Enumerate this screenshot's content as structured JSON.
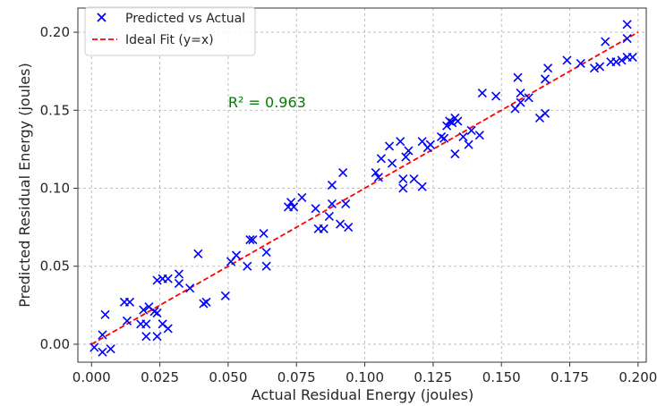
{
  "chart_data": {
    "type": "scatter",
    "xlabel": "Actual Residual Energy (joules)",
    "ylabel": "Predicted Residual Energy (joules)",
    "xlim": [
      -0.005,
      0.203
    ],
    "ylim": [
      -0.0115,
      0.2155
    ],
    "x_ticks": [
      0.0,
      0.025,
      0.05,
      0.075,
      0.1,
      0.125,
      0.15,
      0.175,
      0.2
    ],
    "x_tick_labels": [
      "0.000",
      "0.025",
      "0.050",
      "0.075",
      "0.100",
      "0.125",
      "0.150",
      "0.175",
      "0.200"
    ],
    "y_ticks": [
      0.0,
      0.05,
      0.1,
      0.15,
      0.2
    ],
    "y_tick_labels": [
      "0.00",
      "0.05",
      "0.10",
      "0.15",
      "0.20"
    ],
    "grid": true,
    "legend_position": "top-left",
    "annotation": {
      "text": "R² = 0.963",
      "x": 0.05,
      "y": 0.152,
      "color": "#008000"
    },
    "series": [
      {
        "name": "Predicted vs Actual",
        "marker": "x",
        "color": "#0000ff",
        "points": [
          [
            0.001,
            -0.002
          ],
          [
            0.004,
            -0.005
          ],
          [
            0.007,
            -0.003
          ],
          [
            0.004,
            0.006
          ],
          [
            0.005,
            0.019
          ],
          [
            0.012,
            0.027
          ],
          [
            0.014,
            0.027
          ],
          [
            0.013,
            0.015
          ],
          [
            0.018,
            0.013
          ],
          [
            0.02,
            0.013
          ],
          [
            0.019,
            0.022
          ],
          [
            0.021,
            0.024
          ],
          [
            0.023,
            0.021
          ],
          [
            0.024,
            0.02
          ],
          [
            0.02,
            0.005
          ],
          [
            0.024,
            0.005
          ],
          [
            0.026,
            0.013
          ],
          [
            0.028,
            0.01
          ],
          [
            0.024,
            0.041
          ],
          [
            0.026,
            0.042
          ],
          [
            0.028,
            0.042
          ],
          [
            0.032,
            0.045
          ],
          [
            0.032,
            0.039
          ],
          [
            0.036,
            0.036
          ],
          [
            0.039,
            0.058
          ],
          [
            0.041,
            0.026
          ],
          [
            0.042,
            0.027
          ],
          [
            0.049,
            0.031
          ],
          [
            0.051,
            0.053
          ],
          [
            0.053,
            0.057
          ],
          [
            0.057,
            0.05
          ],
          [
            0.058,
            0.067
          ],
          [
            0.059,
            0.067
          ],
          [
            0.063,
            0.071
          ],
          [
            0.064,
            0.059
          ],
          [
            0.064,
            0.05
          ],
          [
            0.072,
            0.088
          ],
          [
            0.073,
            0.091
          ],
          [
            0.074,
            0.088
          ],
          [
            0.077,
            0.094
          ],
          [
            0.082,
            0.087
          ],
          [
            0.083,
            0.074
          ],
          [
            0.085,
            0.074
          ],
          [
            0.087,
            0.082
          ],
          [
            0.088,
            0.09
          ],
          [
            0.088,
            0.102
          ],
          [
            0.092,
            0.11
          ],
          [
            0.091,
            0.077
          ],
          [
            0.093,
            0.09
          ],
          [
            0.094,
            0.075
          ],
          [
            0.104,
            0.11
          ],
          [
            0.105,
            0.107
          ],
          [
            0.106,
            0.119
          ],
          [
            0.109,
            0.127
          ],
          [
            0.11,
            0.116
          ],
          [
            0.113,
            0.13
          ],
          [
            0.114,
            0.106
          ],
          [
            0.114,
            0.1
          ],
          [
            0.115,
            0.12
          ],
          [
            0.116,
            0.124
          ],
          [
            0.118,
            0.106
          ],
          [
            0.121,
            0.101
          ],
          [
            0.121,
            0.13
          ],
          [
            0.123,
            0.126
          ],
          [
            0.124,
            0.128
          ],
          [
            0.128,
            0.133
          ],
          [
            0.129,
            0.132
          ],
          [
            0.13,
            0.14
          ],
          [
            0.131,
            0.143
          ],
          [
            0.132,
            0.142
          ],
          [
            0.133,
            0.145
          ],
          [
            0.134,
            0.143
          ],
          [
            0.133,
            0.122
          ],
          [
            0.136,
            0.133
          ],
          [
            0.138,
            0.128
          ],
          [
            0.139,
            0.137
          ],
          [
            0.142,
            0.134
          ],
          [
            0.143,
            0.161
          ],
          [
            0.148,
            0.159
          ],
          [
            0.155,
            0.151
          ],
          [
            0.156,
            0.171
          ],
          [
            0.157,
            0.161
          ],
          [
            0.157,
            0.155
          ],
          [
            0.16,
            0.158
          ],
          [
            0.164,
            0.145
          ],
          [
            0.166,
            0.148
          ],
          [
            0.166,
            0.17
          ],
          [
            0.167,
            0.177
          ],
          [
            0.174,
            0.182
          ],
          [
            0.179,
            0.18
          ],
          [
            0.184,
            0.177
          ],
          [
            0.186,
            0.178
          ],
          [
            0.188,
            0.194
          ],
          [
            0.19,
            0.181
          ],
          [
            0.192,
            0.181
          ],
          [
            0.194,
            0.182
          ],
          [
            0.196,
            0.184
          ],
          [
            0.196,
            0.205
          ],
          [
            0.196,
            0.196
          ],
          [
            0.198,
            0.184
          ]
        ]
      },
      {
        "name": "Ideal Fit (y=x)",
        "line_style": "dashed",
        "color": "#ff0000",
        "x": [
          0.0,
          0.2
        ],
        "y": [
          0.0,
          0.2
        ]
      }
    ]
  }
}
